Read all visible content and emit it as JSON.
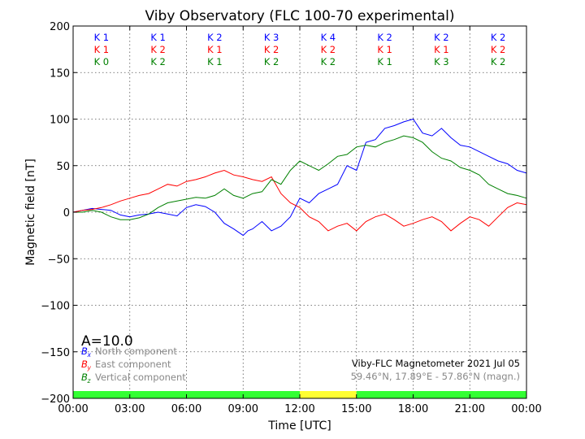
{
  "chart_data": {
    "type": "line",
    "title": "Viby Observatory (FLC 100-70 experimental)",
    "xlabel": "Time [UTC]",
    "ylabel": "Magnetic field [nT]",
    "xlim": [
      0,
      24
    ],
    "ylim": [
      -200,
      200
    ],
    "x_tick_labels": [
      "00:00",
      "03:00",
      "06:00",
      "09:00",
      "12:00",
      "15:00",
      "18:00",
      "21:00",
      "00:00"
    ],
    "x_ticks": [
      0,
      3,
      6,
      9,
      12,
      15,
      18,
      21,
      24
    ],
    "y_ticks": [
      -200,
      -150,
      -100,
      -50,
      0,
      50,
      100,
      150,
      200
    ],
    "y_tick_labels": [
      "−200",
      "−150",
      "−100",
      "−50",
      "0",
      "50",
      "100",
      "150",
      "200"
    ],
    "grid": true,
    "k_index_rows": [
      {
        "color": "#0000ff",
        "labels": [
          "K 1",
          "K 1",
          "K 2",
          "K 3",
          "K 4",
          "K 2",
          "K 2",
          "K 2"
        ]
      },
      {
        "color": "#ff0000",
        "labels": [
          "K 1",
          "K 2",
          "K 1",
          "K 2",
          "K 2",
          "K 1",
          "K 1",
          "K 2"
        ]
      },
      {
        "color": "#008000",
        "labels": [
          "K 0",
          "K 2",
          "K 1",
          "K 2",
          "K 2",
          "K 1",
          "K 3",
          "K 2"
        ]
      }
    ],
    "activity_index": "A=10.0",
    "legend": {
      "position": "bottom-left",
      "entries": [
        {
          "symbol": "B",
          "sub": "x",
          "label": "North component",
          "color": "#0000ff"
        },
        {
          "symbol": "B",
          "sub": "y",
          "label": "East component",
          "color": "#ff0000"
        },
        {
          "symbol": "B",
          "sub": "z",
          "label": "Vertical component",
          "color": "#008000"
        }
      ]
    },
    "info_text": {
      "line1": "Viby-FLC Magnetometer 2021 Jul 05",
      "line2": "59.46°N, 17.89°E - 57.86°N (magn.)"
    },
    "status_bar": [
      {
        "start": 0,
        "end": 12,
        "color": "#33ff33"
      },
      {
        "start": 12,
        "end": 15,
        "color": "#ffff33"
      },
      {
        "start": 15,
        "end": 24,
        "color": "#33ff33"
      }
    ],
    "series": [
      {
        "color": "#0000ff",
        "x": [
          0,
          0.5,
          1,
          1.5,
          2,
          2.5,
          3,
          3.5,
          4,
          4.5,
          5,
          5.5,
          6,
          6.5,
          7,
          7.5,
          8,
          8.5,
          9,
          9.25,
          9.5,
          10,
          10.5,
          11,
          11.5,
          12,
          12.5,
          13,
          13.5,
          14,
          14.5,
          15,
          15.5,
          16,
          16.5,
          17,
          17.5,
          18,
          18.5,
          19,
          19.5,
          20,
          20.5,
          21,
          21.5,
          22,
          22.5,
          23,
          23.5,
          24
        ],
        "y": [
          0,
          2,
          4,
          3,
          2,
          -3,
          -5,
          -3,
          -2,
          0,
          -2,
          -4,
          5,
          8,
          6,
          0,
          -12,
          -18,
          -25,
          -20,
          -18,
          -10,
          -20,
          -15,
          -5,
          15,
          10,
          20,
          25,
          30,
          50,
          45,
          75,
          78,
          90,
          93,
          97,
          100,
          85,
          82,
          90,
          80,
          72,
          70,
          65,
          60,
          55,
          52,
          45,
          42
        ]
      },
      {
        "color": "#ff0000",
        "x": [
          0,
          0.5,
          1,
          1.5,
          2,
          2.5,
          3,
          3.5,
          4,
          4.5,
          5,
          5.5,
          6,
          6.5,
          7,
          7.5,
          8,
          8.5,
          9,
          9.5,
          10,
          10.5,
          11,
          11.5,
          12,
          12.5,
          13,
          13.5,
          14,
          14.5,
          15,
          15.5,
          16,
          16.5,
          17,
          17.5,
          18,
          18.5,
          19,
          19.5,
          20,
          20.5,
          21,
          21.5,
          22,
          22.5,
          23,
          23.5,
          24
        ],
        "y": [
          0,
          2,
          3,
          5,
          8,
          12,
          15,
          18,
          20,
          25,
          30,
          28,
          33,
          35,
          38,
          42,
          45,
          40,
          38,
          35,
          33,
          38,
          20,
          10,
          5,
          -5,
          -10,
          -20,
          -15,
          -12,
          -20,
          -10,
          -5,
          -2,
          -8,
          -15,
          -12,
          -8,
          -5,
          -10,
          -20,
          -12,
          -5,
          -8,
          -15,
          -5,
          5,
          10,
          8
        ]
      },
      {
        "color": "#008000",
        "x": [
          0,
          0.5,
          1,
          1.5,
          2,
          2.5,
          3,
          3.5,
          4,
          4.5,
          5,
          5.5,
          6,
          6.5,
          7,
          7.5,
          8,
          8.5,
          9,
          9.5,
          10,
          10.5,
          11,
          11.5,
          12,
          12.5,
          13,
          13.5,
          14,
          14.5,
          15,
          15.5,
          16,
          16.5,
          17,
          17.5,
          18,
          18.5,
          19,
          19.5,
          20,
          20.5,
          21,
          21.5,
          22,
          22.5,
          23,
          23.5,
          24
        ],
        "y": [
          0,
          0,
          2,
          0,
          -5,
          -8,
          -8,
          -6,
          -2,
          5,
          10,
          12,
          14,
          16,
          15,
          18,
          25,
          18,
          15,
          20,
          22,
          35,
          30,
          45,
          55,
          50,
          45,
          52,
          60,
          62,
          70,
          72,
          70,
          75,
          78,
          82,
          80,
          75,
          65,
          58,
          55,
          48,
          45,
          40,
          30,
          25,
          20,
          18,
          15
        ]
      }
    ]
  }
}
